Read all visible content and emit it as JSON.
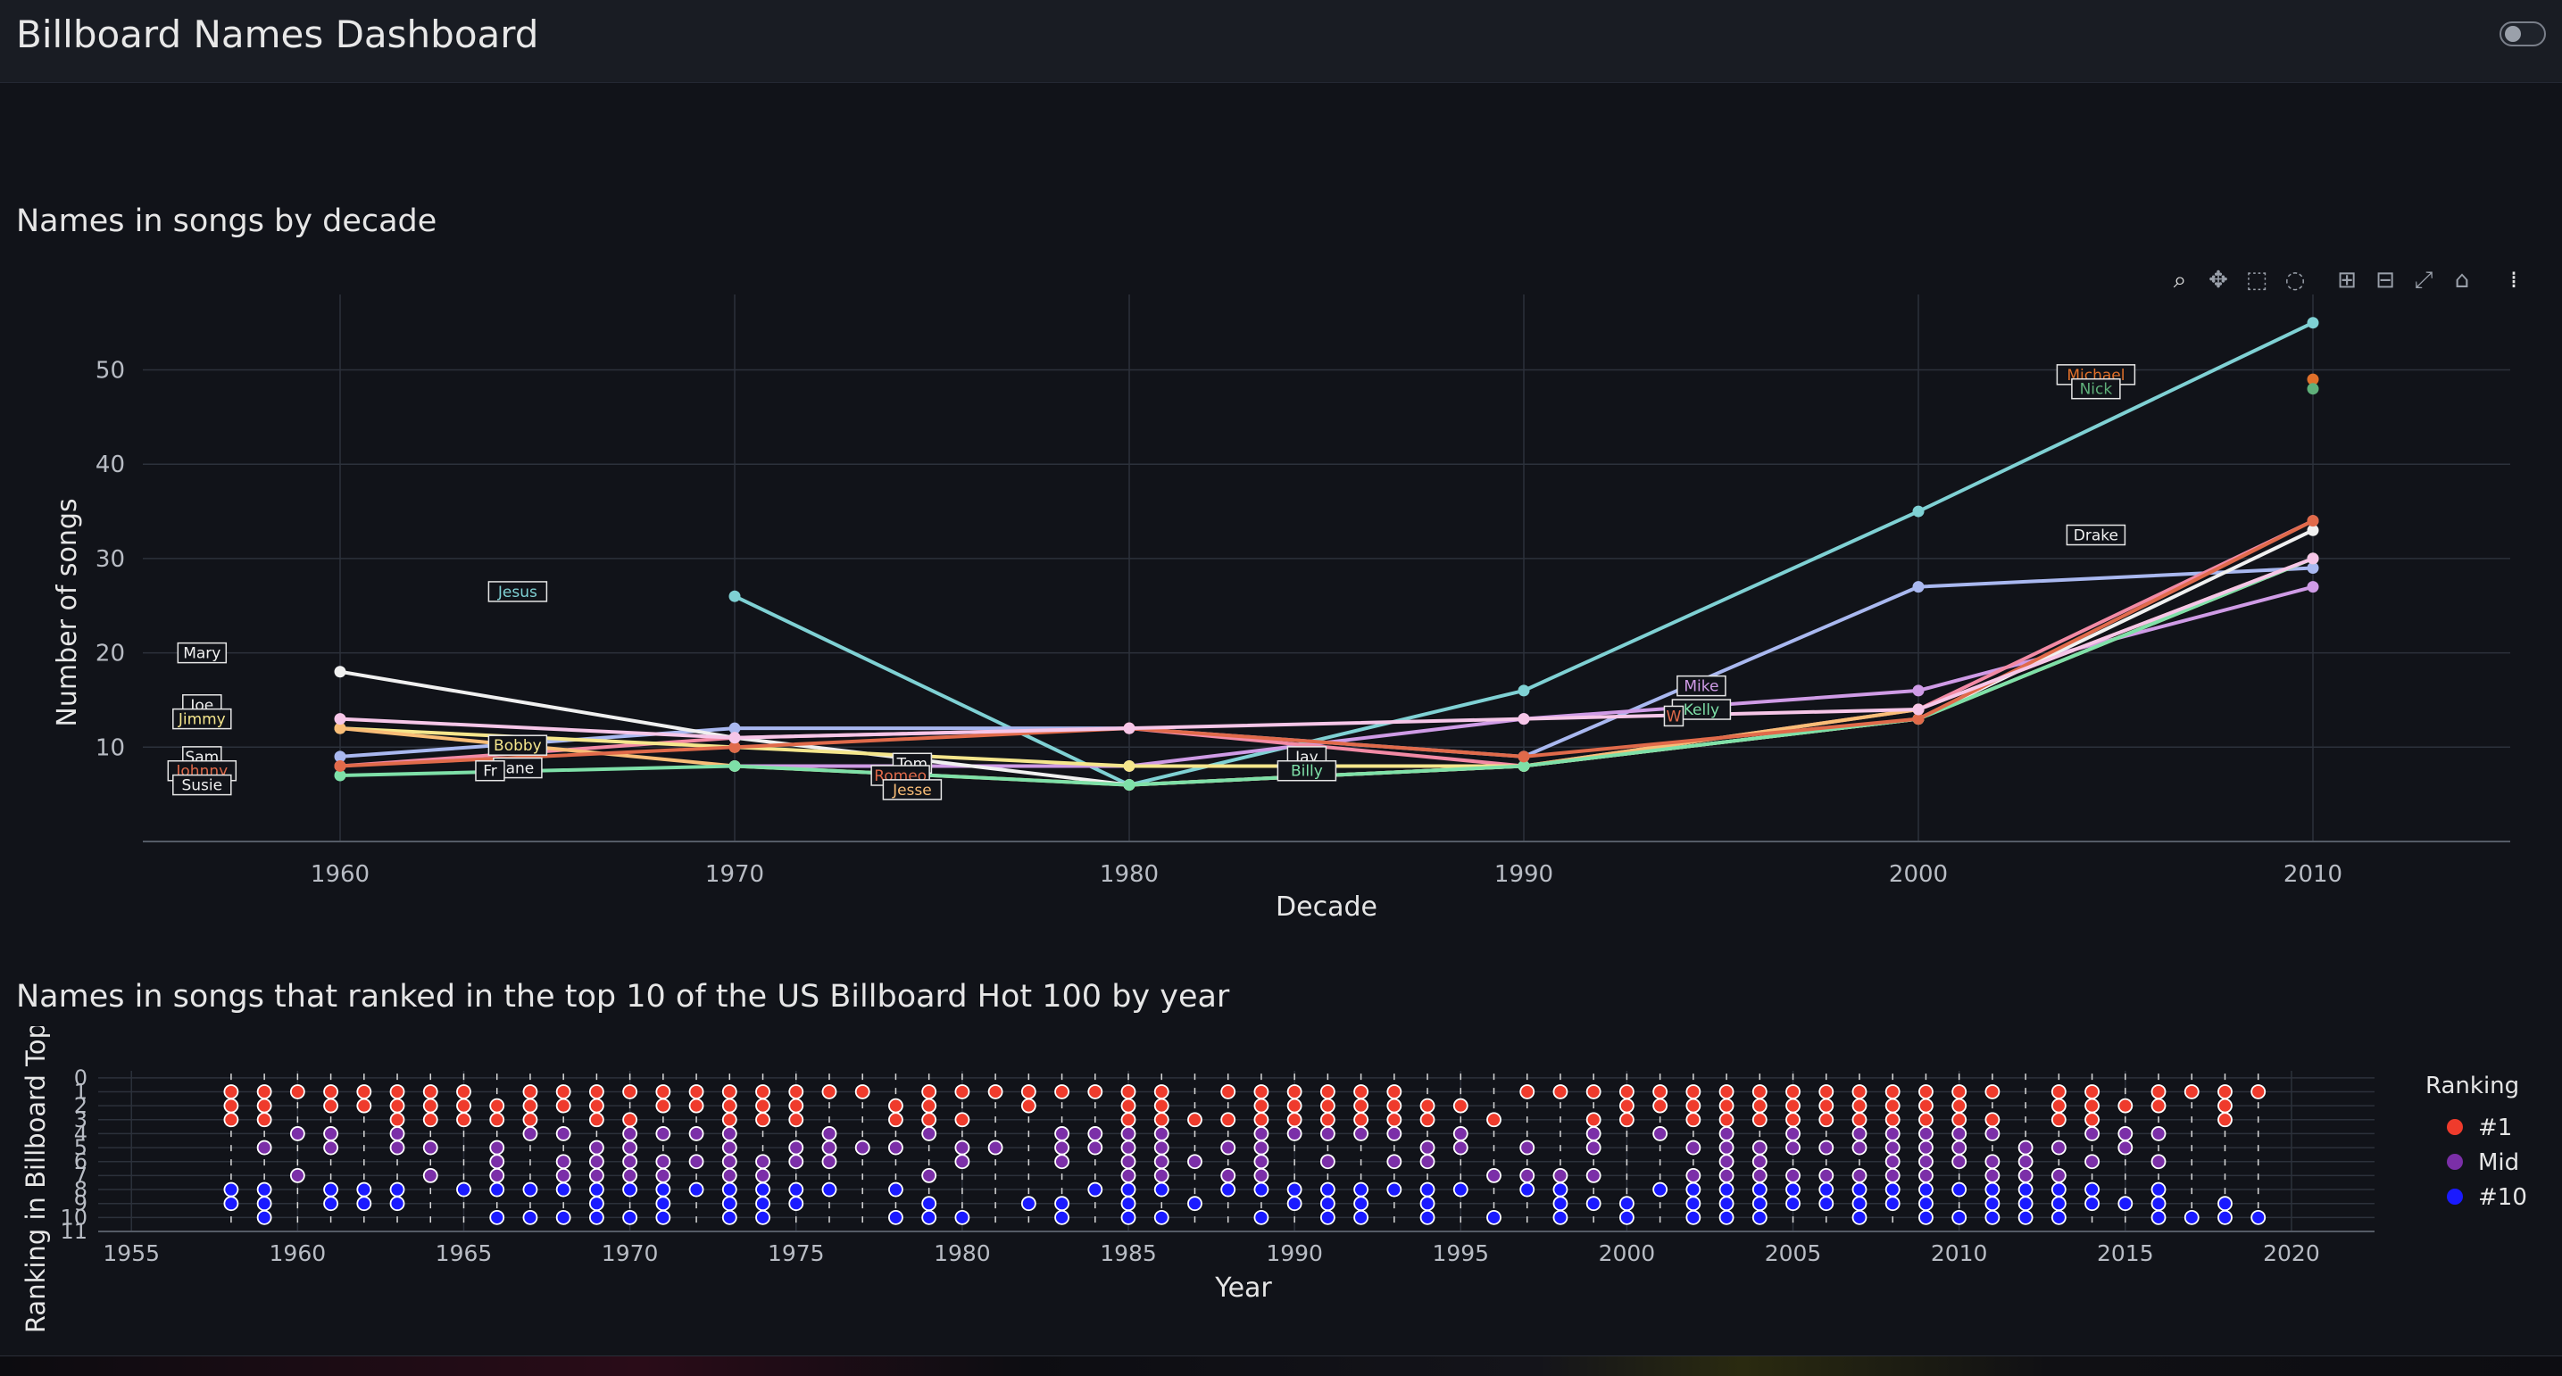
{
  "app": {
    "title": "Billboard Names Dashboard"
  },
  "colors": {
    "background": "#111319",
    "header": "#191c23",
    "rank_top": "#ef3b2c",
    "rank_mid": "#7b2fa8",
    "rank_low": "#1a1aff"
  },
  "toolbar": {
    "icons": [
      "zoom-icon",
      "pan-icon",
      "box-select-icon",
      "lasso-select-icon",
      "zoom-in-icon",
      "zoom-out-icon",
      "autoscale-icon",
      "reset-axes-icon",
      "plotly-logo-icon"
    ]
  },
  "chart_data": [
    {
      "title": "Names in songs by decade",
      "type": "line",
      "xlabel": "Decade",
      "ylabel": "Number of songs",
      "xlim": [
        1955,
        2015
      ],
      "ylim": [
        0,
        58
      ],
      "xticks": [
        1960,
        1970,
        1980,
        1990,
        2000,
        2010
      ],
      "yticks": [
        10,
        20,
        30,
        40,
        50
      ],
      "grid": true,
      "legend": "none",
      "x": [
        1960,
        1970,
        1980,
        1990,
        2000,
        2010
      ],
      "series": [
        {
          "color": "#7fd1d4",
          "values": [
            null,
            26,
            6,
            16,
            35,
            55
          ]
        },
        {
          "color": "#a9b8f0",
          "values": [
            9,
            12,
            12,
            9,
            27,
            29
          ]
        },
        {
          "color": "#cf9be6",
          "values": [
            null,
            8,
            8,
            13,
            16,
            27
          ]
        },
        {
          "color": "#f28aa5",
          "values": [
            8,
            11,
            12,
            8,
            14,
            34
          ]
        },
        {
          "color": "#f0f0f0",
          "values": [
            18,
            11,
            6,
            8,
            13,
            33
          ]
        },
        {
          "color": "#f5e68c",
          "values": [
            12,
            10,
            8,
            8,
            13,
            30
          ]
        },
        {
          "color": "#f9bd77",
          "values": [
            12,
            8,
            6,
            8,
            14,
            30
          ]
        },
        {
          "color": "#7ee0a8",
          "values": [
            7,
            8,
            6,
            8,
            13,
            30
          ]
        },
        {
          "color": "#e06a4a",
          "values": [
            8,
            10,
            12,
            9,
            13,
            34
          ]
        },
        {
          "color": "#f6c6e8",
          "values": [
            13,
            11,
            12,
            13,
            14,
            30
          ]
        }
      ],
      "points": [
        {
          "x": 2010,
          "y": 49,
          "color": "#e0702a"
        },
        {
          "x": 2010,
          "y": 48,
          "color": "#5fb07a"
        }
      ],
      "annotations": [
        {
          "text": "Jesus",
          "x": 1964.5,
          "y": 26.5,
          "color": "#7fd1d4"
        },
        {
          "text": "Mary",
          "x": 1956.5,
          "y": 20,
          "color": "#f0f0f0"
        },
        {
          "text": "Joe",
          "x": 1956.5,
          "y": 14.5,
          "color": "#f0f0f0"
        },
        {
          "text": "Jimmy",
          "x": 1956.5,
          "y": 13,
          "color": "#f5e68c"
        },
        {
          "text": "Sam",
          "x": 1956.5,
          "y": 9,
          "color": "#f0f0f0"
        },
        {
          "text": "Johnny",
          "x": 1956.5,
          "y": 7.5,
          "color": "#e06a4a"
        },
        {
          "text": "Susie",
          "x": 1956.5,
          "y": 6,
          "color": "#f0f0f0"
        },
        {
          "text": "Bobby",
          "x": 1964.5,
          "y": 10.2,
          "color": "#f5e68c"
        },
        {
          "text": "Jane",
          "x": 1964.5,
          "y": 7.8,
          "color": "#f0f0f0"
        },
        {
          "text": "Fr",
          "x": 1963.8,
          "y": 7.5,
          "color": "#f0f0f0"
        },
        {
          "text": "Tom",
          "x": 1974.5,
          "y": 8.3,
          "color": "#f0f0f0"
        },
        {
          "text": "Romeo",
          "x": 1974.2,
          "y": 7,
          "color": "#e06a4a"
        },
        {
          "text": "Jesse",
          "x": 1974.5,
          "y": 5.5,
          "color": "#f9bd77"
        },
        {
          "text": "Jay",
          "x": 1984.5,
          "y": 9,
          "color": "#f0f0f0"
        },
        {
          "text": "Billy",
          "x": 1984.5,
          "y": 7.5,
          "color": "#7ee0a8"
        },
        {
          "text": "Mike",
          "x": 1994.5,
          "y": 16.5,
          "color": "#cf9be6"
        },
        {
          "text": "Kelly",
          "x": 1994.5,
          "y": 14,
          "color": "#7ee0a8"
        },
        {
          "text": "W",
          "x": 1993.8,
          "y": 13.3,
          "color": "#e06a4a"
        },
        {
          "text": "Michael",
          "x": 2004.5,
          "y": 49.5,
          "color": "#e0702a"
        },
        {
          "text": "Nick",
          "x": 2004.5,
          "y": 48,
          "color": "#5fb07a"
        },
        {
          "text": "Drake",
          "x": 2004.5,
          "y": 32.5,
          "color": "#f0f0f0"
        }
      ]
    },
    {
      "title": "Names in songs that ranked in the top 10 of the US Billboard Hot 100 by year",
      "type": "scatter",
      "xlabel": "Year",
      "ylabel": "Ranking in Billboard Top",
      "xlim": [
        1954,
        2022.5
      ],
      "ylim": [
        -0.5,
        11
      ],
      "xticks": [
        1955,
        1960,
        1965,
        1970,
        1975,
        1980,
        1985,
        1990,
        1995,
        2000,
        2005,
        2010,
        2015,
        2020
      ],
      "yticks": [
        0,
        1,
        2,
        3,
        4,
        5,
        6,
        7,
        8,
        9,
        10,
        11
      ],
      "grid": true,
      "legend": {
        "position": "right",
        "title": "Ranking",
        "items": [
          "#1",
          "Mid",
          "#10"
        ]
      },
      "ranking_values": {
        "#1": 1,
        "Mid": 5.5,
        "#10": 10
      },
      "points_by_year": {
        "1958": [
          1,
          2,
          3,
          8,
          9
        ],
        "1959": [
          1,
          2,
          3,
          5,
          8,
          9,
          10
        ],
        "1960": [
          1,
          4,
          7
        ],
        "1961": [
          1,
          2,
          4,
          5,
          8,
          9
        ],
        "1962": [
          1,
          2,
          8,
          9
        ],
        "1963": [
          1,
          2,
          3,
          4,
          5,
          8,
          9
        ],
        "1964": [
          1,
          2,
          3,
          5,
          7
        ],
        "1965": [
          1,
          2,
          3,
          8
        ],
        "1966": [
          2,
          3,
          5,
          6,
          7,
          8,
          10
        ],
        "1967": [
          1,
          2,
          3,
          4,
          8,
          10
        ],
        "1968": [
          1,
          2,
          4,
          6,
          7,
          8,
          10
        ],
        "1969": [
          1,
          2,
          3,
          5,
          6,
          7,
          8,
          9,
          10
        ],
        "1970": [
          1,
          3,
          4,
          5,
          6,
          7,
          8,
          10
        ],
        "1971": [
          1,
          2,
          4,
          6,
          7,
          8,
          9,
          10
        ],
        "1972": [
          1,
          2,
          4,
          6,
          8
        ],
        "1973": [
          1,
          2,
          3,
          4,
          5,
          6,
          7,
          8,
          9,
          10
        ],
        "1974": [
          1,
          2,
          3,
          6,
          7,
          8,
          9,
          10
        ],
        "1975": [
          1,
          2,
          3,
          5,
          6,
          8,
          9
        ],
        "1976": [
          1,
          4,
          5,
          6,
          8
        ],
        "1977": [
          1,
          5
        ],
        "1978": [
          2,
          3,
          5,
          8,
          10
        ],
        "1979": [
          1,
          2,
          3,
          4,
          7,
          9,
          10
        ],
        "1980": [
          1,
          3,
          5,
          6,
          10
        ],
        "1981": [
          1,
          5
        ],
        "1982": [
          1,
          2,
          9
        ],
        "1983": [
          1,
          4,
          5,
          6,
          9,
          10
        ],
        "1984": [
          1,
          4,
          5,
          8
        ],
        "1985": [
          1,
          2,
          3,
          4,
          5,
          6,
          7,
          8,
          9,
          10
        ],
        "1986": [
          1,
          2,
          3,
          4,
          5,
          6,
          7,
          8,
          10
        ],
        "1987": [
          3,
          6,
          9
        ],
        "1988": [
          1,
          3,
          5,
          7,
          8
        ],
        "1989": [
          1,
          2,
          3,
          4,
          5,
          6,
          7,
          8,
          10
        ],
        "1990": [
          1,
          2,
          3,
          4,
          8,
          9
        ],
        "1991": [
          1,
          2,
          3,
          4,
          6,
          8,
          9,
          10
        ],
        "1992": [
          1,
          2,
          3,
          4,
          8,
          9,
          10
        ],
        "1993": [
          1,
          2,
          3,
          4,
          6,
          8
        ],
        "1994": [
          2,
          3,
          5,
          6,
          8,
          9,
          10
        ],
        "1995": [
          2,
          4,
          5,
          8
        ],
        "1996": [
          3,
          7,
          10
        ],
        "1997": [
          1,
          5,
          7,
          8
        ],
        "1998": [
          1,
          7,
          8,
          9,
          10
        ],
        "1999": [
          1,
          3,
          4,
          5,
          7,
          9
        ],
        "2000": [
          1,
          2,
          3,
          9,
          10
        ],
        "2001": [
          1,
          2,
          4,
          8
        ],
        "2002": [
          1,
          2,
          3,
          5,
          7,
          8,
          9,
          10
        ],
        "2003": [
          1,
          2,
          3,
          4,
          5,
          6,
          7,
          8,
          9,
          10
        ],
        "2004": [
          1,
          2,
          3,
          5,
          6,
          7,
          8,
          9,
          10
        ],
        "2005": [
          1,
          2,
          3,
          4,
          5,
          7,
          8,
          9
        ],
        "2006": [
          1,
          2,
          3,
          5,
          7,
          8,
          9
        ],
        "2007": [
          1,
          2,
          3,
          4,
          5,
          7,
          8,
          9,
          10
        ],
        "2008": [
          1,
          2,
          3,
          4,
          5,
          6,
          7,
          8,
          9
        ],
        "2009": [
          1,
          2,
          3,
          4,
          5,
          6,
          7,
          8,
          9,
          10
        ],
        "2010": [
          1,
          2,
          3,
          4,
          5,
          6,
          8,
          10
        ],
        "2011": [
          1,
          3,
          4,
          6,
          7,
          8,
          9,
          10
        ],
        "2012": [
          5,
          6,
          7,
          8,
          9,
          10
        ],
        "2013": [
          1,
          2,
          3,
          5,
          7,
          8,
          9,
          10
        ],
        "2014": [
          1,
          2,
          3,
          4,
          6,
          8,
          9
        ],
        "2015": [
          2,
          4,
          5,
          9
        ],
        "2016": [
          1,
          2,
          4,
          6,
          8,
          9,
          10
        ],
        "2017": [
          1,
          10
        ],
        "2018": [
          1,
          2,
          3,
          9,
          10
        ],
        "2019": [
          1,
          10
        ]
      }
    }
  ]
}
